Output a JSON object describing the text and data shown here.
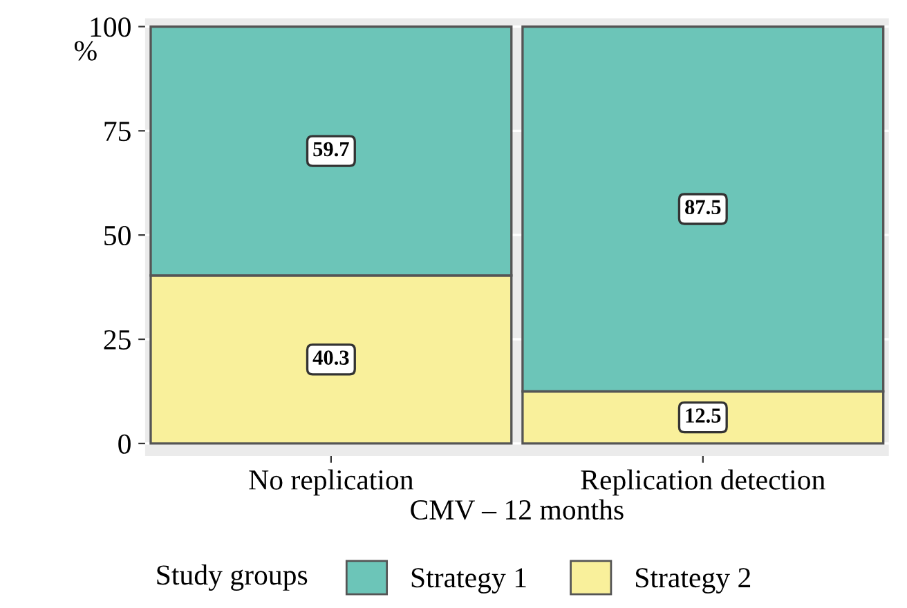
{
  "chart_data": {
    "type": "bar",
    "stacked": true,
    "xlabel": "CMV – 12 months",
    "ylabel": "%",
    "legend_title": "Study groups",
    "categories": [
      "No replication",
      "Replication detection"
    ],
    "series": [
      {
        "name": "Strategy 2",
        "color": "#f9f09b",
        "values": [
          40.3,
          12.5
        ]
      },
      {
        "name": "Strategy 1",
        "color": "#6cc5b8",
        "values": [
          59.7,
          87.5
        ]
      }
    ],
    "ylim": [
      -3,
      102
    ],
    "yticks": [
      0,
      25,
      50,
      75,
      100
    ],
    "grid": "y",
    "legend": "bottom",
    "data_labels": true
  }
}
